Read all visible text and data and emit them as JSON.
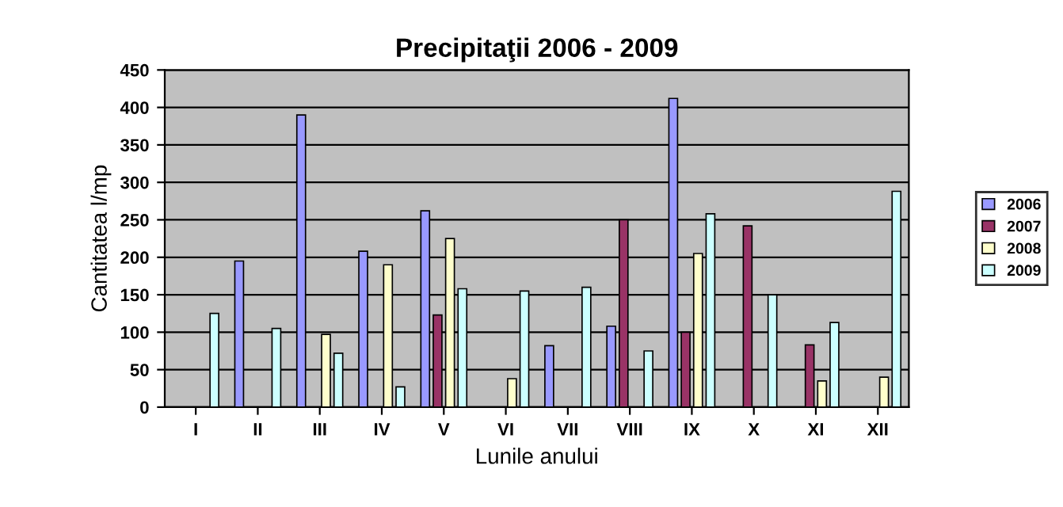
{
  "chart_data": {
    "type": "bar",
    "title": "Precipitaţii 2006 - 2009",
    "xlabel": "Lunile anului",
    "ylabel": "Cantitatea l/mp",
    "categories": [
      "I",
      "II",
      "III",
      "IV",
      "V",
      "VI",
      "VII",
      "VIII",
      "IX",
      "X",
      "XI",
      "XII"
    ],
    "series": [
      {
        "name": "2006",
        "color": "#9999ff",
        "values": [
          null,
          195,
          390,
          208,
          262,
          null,
          82,
          108,
          412,
          null,
          null,
          null
        ]
      },
      {
        "name": "2007",
        "color": "#993366",
        "values": [
          null,
          null,
          null,
          null,
          123,
          null,
          null,
          250,
          100,
          242,
          83,
          null
        ]
      },
      {
        "name": "2008",
        "color": "#ffffcc",
        "values": [
          null,
          null,
          97,
          190,
          225,
          38,
          null,
          null,
          205,
          null,
          35,
          40
        ]
      },
      {
        "name": "2009",
        "color": "#ccffff",
        "values": [
          125,
          105,
          72,
          27,
          158,
          155,
          160,
          75,
          258,
          150,
          113,
          288
        ]
      }
    ],
    "ylim": [
      0,
      450
    ],
    "yticks": [
      0,
      50,
      100,
      150,
      200,
      250,
      300,
      350,
      400,
      450
    ],
    "grid": "y",
    "legend": "right"
  }
}
